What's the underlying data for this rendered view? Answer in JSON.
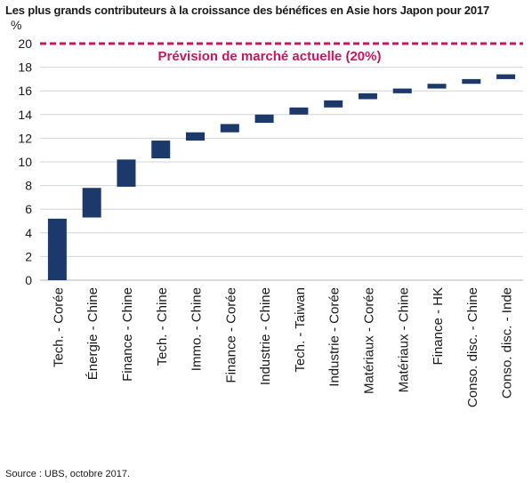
{
  "title": "Les plus grands contributeurs à la croissance des bénéfices en Asie hors Japon pour 2017",
  "source": "Source : UBS, octobre 2017.",
  "chart_data": {
    "type": "waterfall",
    "title": "Les plus grands contributeurs à la croissance des bénéfices en Asie hors Japon pour 2017",
    "ylabel": "%",
    "xlabel": "",
    "ylim": [
      0,
      20
    ],
    "yticks": [
      0,
      2,
      4,
      6,
      8,
      10,
      12,
      14,
      16,
      18,
      20
    ],
    "grid": true,
    "bar_color": "#1b3a6b",
    "categories": [
      "Tech. - Corée",
      "Énergie - Chine",
      "Finance - Chine",
      "Tech. - Chine",
      "Immo. - Chine",
      "Finance - Corée",
      "Industrie - Chine",
      "Tech. - Taiwan",
      "Industrie - Corée",
      "Matériaux - Corée",
      "Matériaux - Chine",
      "Finance - HK",
      "Conso. disc. - Chine",
      "Conso. disc. - Inde"
    ],
    "bars": [
      {
        "start": 0.0,
        "end": 5.2
      },
      {
        "start": 5.3,
        "end": 7.8
      },
      {
        "start": 7.9,
        "end": 10.2
      },
      {
        "start": 10.3,
        "end": 11.8
      },
      {
        "start": 11.8,
        "end": 12.5
      },
      {
        "start": 12.5,
        "end": 13.2
      },
      {
        "start": 13.3,
        "end": 14.0
      },
      {
        "start": 14.0,
        "end": 14.6
      },
      {
        "start": 14.6,
        "end": 15.2
      },
      {
        "start": 15.3,
        "end": 15.8
      },
      {
        "start": 15.8,
        "end": 16.2
      },
      {
        "start": 16.2,
        "end": 16.6
      },
      {
        "start": 16.6,
        "end": 17.0
      },
      {
        "start": 17.0,
        "end": 17.4
      }
    ],
    "reference_line": {
      "value": 20,
      "label": "Prévision de marché actuelle (20%)",
      "color": "#c8175e"
    }
  }
}
